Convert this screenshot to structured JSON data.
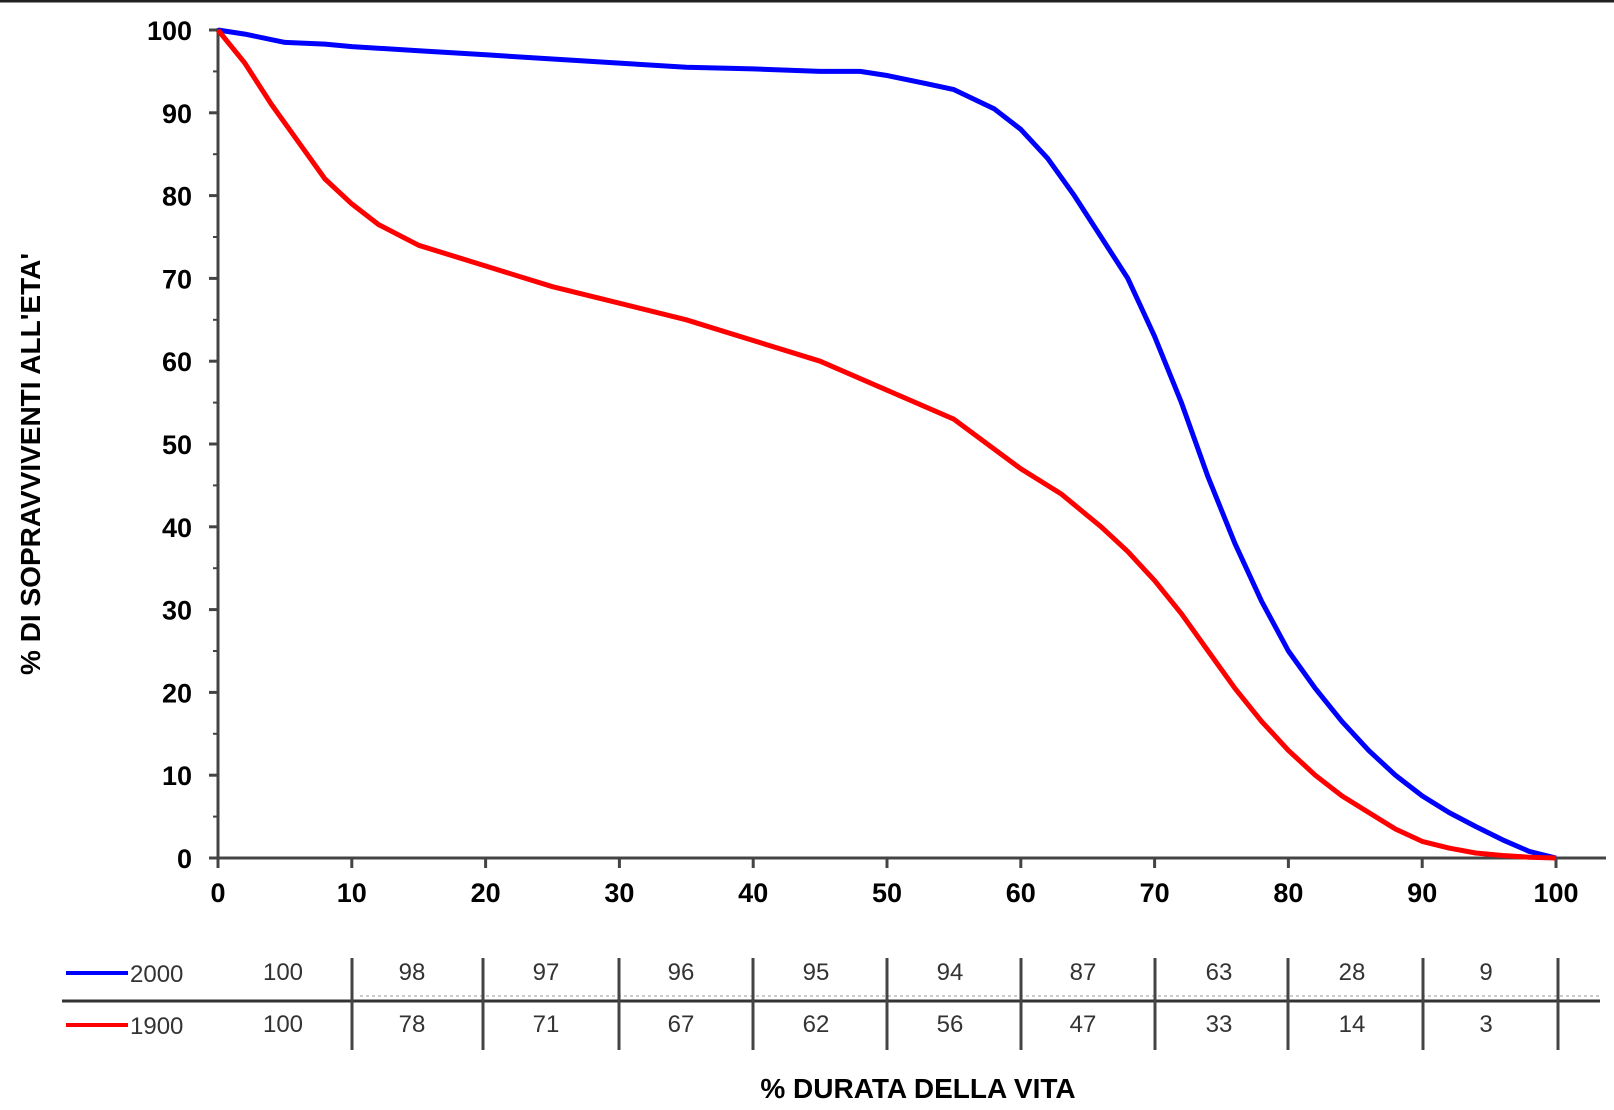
{
  "chart_data": {
    "type": "line",
    "title": "",
    "xlabel": "% DURATA DELLA VITA",
    "ylabel": "% DI SOPRAVVIVENTI ALL'ETA'",
    "xlim": [
      0,
      100
    ],
    "ylim": [
      0,
      100
    ],
    "x_ticks": [
      "0",
      "10",
      "20",
      "30",
      "40",
      "50",
      "60",
      "70",
      "80",
      "90",
      "100"
    ],
    "y_ticks": [
      "0",
      "10",
      "20",
      "30",
      "40",
      "50",
      "60",
      "70",
      "80",
      "90",
      "100"
    ],
    "grid": false,
    "series": [
      {
        "name": "2000",
        "color": "#0000ff",
        "x": [
          0,
          2,
          5,
          8,
          10,
          15,
          20,
          25,
          30,
          35,
          40,
          45,
          48,
          50,
          53,
          55,
          58,
          60,
          62,
          64,
          66,
          68,
          70,
          72,
          74,
          76,
          78,
          80,
          82,
          84,
          86,
          88,
          90,
          92,
          94,
          96,
          98,
          100
        ],
        "y": [
          100,
          99.5,
          98.5,
          98.3,
          98,
          97.5,
          97,
          96.5,
          96,
          95.5,
          95.3,
          95,
          95,
          94.5,
          93.5,
          92.8,
          90.5,
          88,
          84.5,
          80,
          75,
          70,
          63,
          55,
          46,
          38,
          31,
          25,
          20.5,
          16.5,
          13,
          10,
          7.5,
          5.5,
          3.8,
          2.2,
          0.8,
          0
        ]
      },
      {
        "name": "1900",
        "color": "#ff0000",
        "x": [
          0,
          2,
          4,
          6,
          8,
          10,
          12,
          15,
          20,
          25,
          30,
          35,
          40,
          45,
          50,
          55,
          60,
          63,
          66,
          68,
          70,
          72,
          74,
          76,
          78,
          80,
          82,
          84,
          86,
          88,
          90,
          92,
          94,
          96,
          98,
          100
        ],
        "y": [
          100,
          96,
          91,
          86.5,
          82,
          79,
          76.5,
          74,
          71.5,
          69,
          67,
          65,
          62.5,
          60,
          56.5,
          53,
          47,
          44,
          40,
          37,
          33.5,
          29.5,
          25,
          20.5,
          16.5,
          13,
          10,
          7.5,
          5.5,
          3.5,
          2,
          1.2,
          0.6,
          0.3,
          0.1,
          0
        ]
      }
    ],
    "table": {
      "columns": [
        "100",
        "98",
        "97",
        "96",
        "95",
        "94",
        "87",
        "63",
        "28",
        "9"
      ],
      "rows": [
        {
          "series": "2000",
          "values": [
            "100",
            "98",
            "97",
            "96",
            "95",
            "94",
            "87",
            "63",
            "28",
            "9"
          ]
        },
        {
          "series": "1900",
          "values": [
            "100",
            "78",
            "71",
            "67",
            "62",
            "56",
            "47",
            "33",
            "14",
            "3"
          ]
        }
      ]
    }
  }
}
